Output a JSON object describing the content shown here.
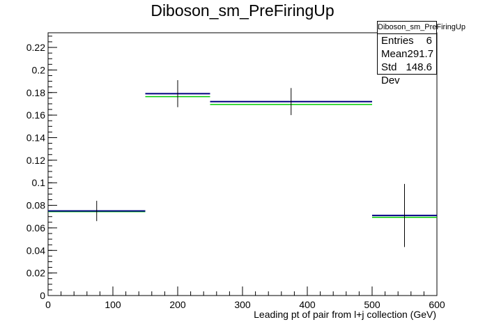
{
  "chart_data": {
    "type": "histogram",
    "title": "Diboson_sm_PreFiringUp",
    "xlabel": "Leading pt of pair from l+j collection (GeV)",
    "ylabel": "",
    "xlim": [
      0,
      600
    ],
    "ylim": [
      0,
      0.233
    ],
    "x_ticks": [
      0,
      100,
      200,
      300,
      400,
      500,
      600
    ],
    "y_ticks": [
      0,
      0.02,
      0.04,
      0.06,
      0.08,
      0.1,
      0.12,
      0.14,
      0.16,
      0.18,
      0.2,
      0.22
    ],
    "x_tick_labels": [
      "0",
      "100",
      "200",
      "300",
      "400",
      "500",
      "600"
    ],
    "y_tick_labels": [
      "0",
      "0.02",
      "0.04",
      "0.06",
      "0.08",
      "0.1",
      "0.12",
      "0.14",
      "0.16",
      "0.18",
      "0.2",
      "0.22"
    ],
    "bins": [
      {
        "low": 0,
        "high": 150,
        "center": 75,
        "value": 0.075,
        "error": 0.009,
        "green": 0.075
      },
      {
        "low": 150,
        "high": 250,
        "center": 200,
        "value": 0.179,
        "error": 0.012,
        "green": 0.177
      },
      {
        "low": 250,
        "high": 500,
        "center": 375,
        "value": 0.172,
        "error": 0.012,
        "green": 0.17
      },
      {
        "low": 500,
        "high": 600,
        "center": 550,
        "value": 0.071,
        "error": 0.028,
        "green": 0.07
      }
    ],
    "series_colors": {
      "main": "#000080",
      "overlay": "#00cc00",
      "error": "#000000"
    },
    "grid": false,
    "legend": "top-right"
  },
  "stats": {
    "title": "Diboson_sm_PreFiringUp",
    "rows": [
      {
        "label": "Entries",
        "value": "6"
      },
      {
        "label": "Mean",
        "value": "291.7"
      },
      {
        "label": "Std Dev",
        "value": "148.6"
      }
    ]
  }
}
